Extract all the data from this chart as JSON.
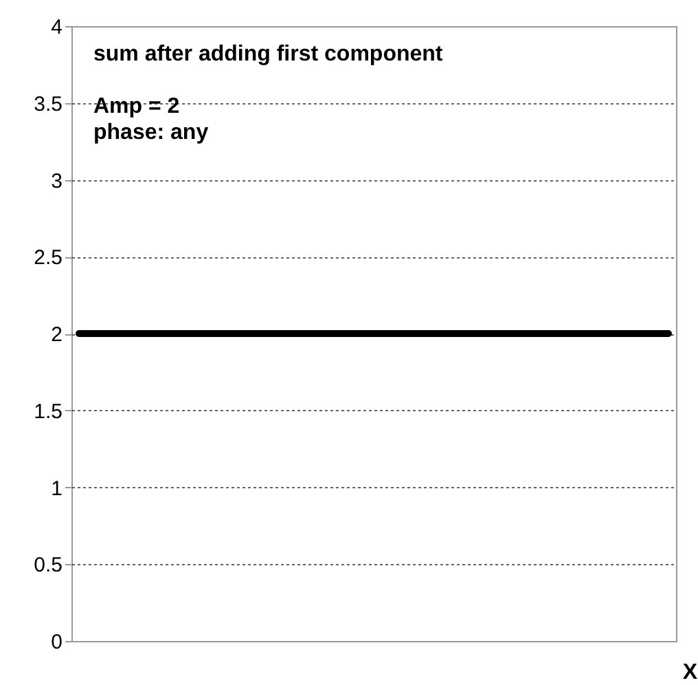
{
  "chart_data": {
    "type": "line",
    "title": "sum after adding first component",
    "annotations": [
      "Amp = 2",
      "phase: any"
    ],
    "xlabel": "X",
    "categories": [
      null,
      null,
      null,
      null,
      null,
      null,
      null,
      null,
      null,
      null,
      null,
      null,
      null,
      null,
      null,
      null,
      null,
      null,
      null,
      null,
      null,
      null,
      null,
      null,
      null,
      null,
      null,
      null,
      null,
      null,
      null,
      null,
      null,
      null,
      null,
      null,
      null,
      null,
      null,
      null
    ],
    "series": [
      {
        "color": "#000000",
        "values": [
          2,
          2,
          2,
          2,
          2,
          2,
          2,
          2,
          2,
          2,
          2,
          2,
          2,
          2,
          2,
          2,
          2,
          2,
          2,
          2,
          2,
          2,
          2,
          2,
          2,
          2,
          2,
          2,
          2,
          2,
          2,
          2,
          2,
          2,
          2,
          2,
          2,
          2,
          2,
          2
        ]
      }
    ],
    "ylim": [
      0,
      4
    ],
    "yticks": [
      0,
      0.5,
      1,
      1.5,
      2,
      2.5,
      3,
      3.5,
      4
    ],
    "grid": "y",
    "tick_labels": "y",
    "marker": "none",
    "line_style": "solid"
  }
}
